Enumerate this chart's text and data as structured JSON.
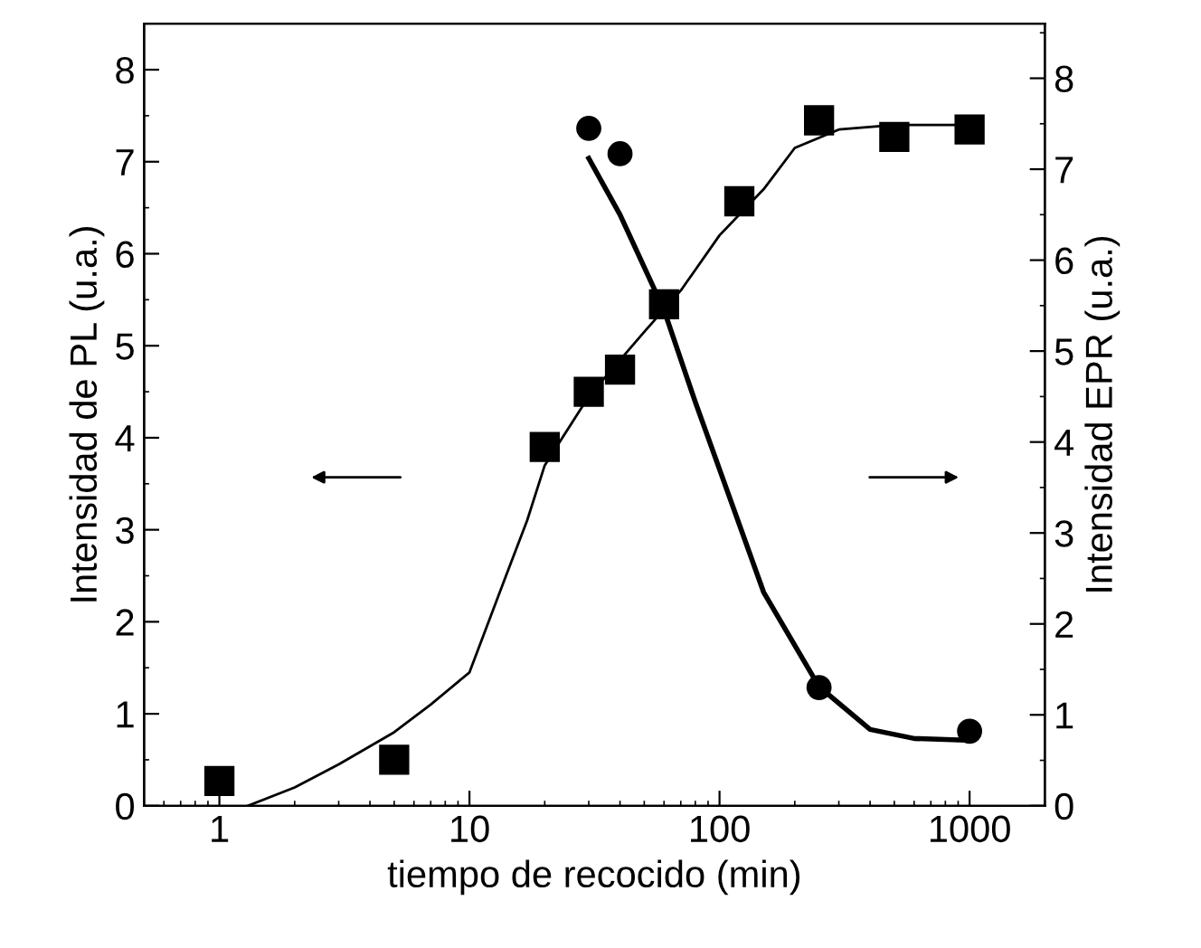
{
  "chart_data": {
    "type": "scatter",
    "xlabel": "tiempo de recocido (min)",
    "ylabel": "Intensidad de PL (u.a.)",
    "y2label": "Intensidad EPR (u.a.)",
    "log": "x",
    "xlim": [
      0.5,
      2000
    ],
    "xticks": [
      1,
      10,
      100,
      1000
    ],
    "ylim": [
      0,
      8.5
    ],
    "yticks": [
      0,
      1,
      2,
      3,
      4,
      5,
      6,
      7,
      8
    ],
    "y2lim": [
      0,
      8.6
    ],
    "y2ticks": [
      0,
      1,
      2,
      3,
      4,
      5,
      6,
      7,
      8
    ],
    "grid": false,
    "legend": false,
    "series": [
      {
        "marker": "square",
        "color": "#000000",
        "x": [
          1,
          5,
          20,
          30,
          40,
          60,
          120,
          250,
          500,
          1000
        ],
        "values": [
          0.27,
          0.5,
          3.9,
          4.5,
          4.74,
          5.45,
          6.57,
          7.45,
          7.27,
          7.35
        ]
      },
      {
        "marker": "circle",
        "axis": "y2",
        "color": "#000000",
        "x": [
          30,
          40,
          250,
          1000
        ],
        "values": [
          7.45,
          7.17,
          1.3,
          0.82
        ]
      },
      {
        "type": "line",
        "marker": "none",
        "line_style": "solid",
        "color": "#000000",
        "x": [
          1.3,
          2,
          3,
          5,
          7,
          10,
          14,
          17,
          20,
          30,
          50,
          70,
          100,
          150,
          200,
          300,
          500,
          1000
        ],
        "values": [
          0,
          0.2,
          0.45,
          0.8,
          1.1,
          1.45,
          2.5,
          3.1,
          3.7,
          4.45,
          5.15,
          5.6,
          6.2,
          6.7,
          7.15,
          7.35,
          7.4,
          7.4
        ]
      },
      {
        "type": "line",
        "marker": "none",
        "line_style": "solid",
        "axis": "y2",
        "color": "#000000",
        "x": [
          30,
          40,
          60,
          80,
          100,
          150,
          250,
          400,
          600,
          1000
        ],
        "values": [
          7.12,
          6.5,
          5.45,
          4.44,
          3.7,
          2.35,
          1.31,
          0.84,
          0.74,
          0.72
        ]
      }
    ]
  }
}
